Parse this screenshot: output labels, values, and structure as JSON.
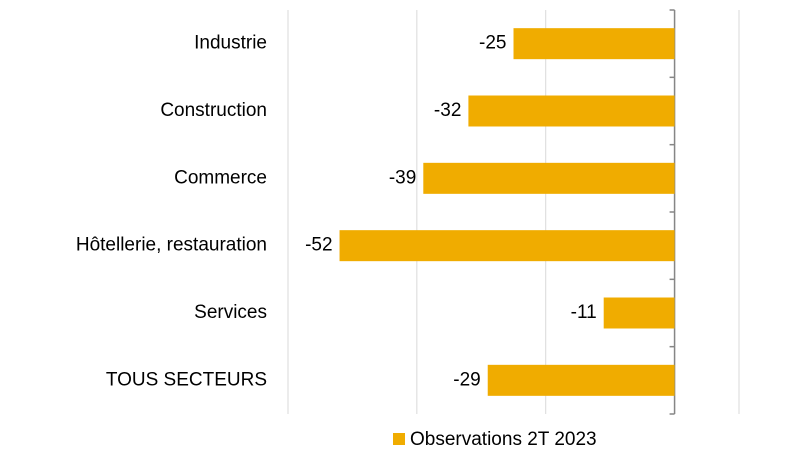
{
  "chart_data": {
    "type": "barh",
    "categories": [
      "Industrie",
      "Construction",
      "Commerce",
      "Hôtellerie, restauration",
      "Services",
      "TOUS SECTEURS"
    ],
    "series": [
      {
        "name": "Observations 2T 2023",
        "color": "#f0ac00",
        "values": [
          -25,
          -32,
          -39,
          -52,
          -11,
          -29
        ]
      }
    ],
    "xlim": [
      -60,
      10
    ],
    "xticks": [
      -60,
      -40,
      -20,
      0,
      10
    ],
    "grid": true,
    "legend": "bottom"
  }
}
